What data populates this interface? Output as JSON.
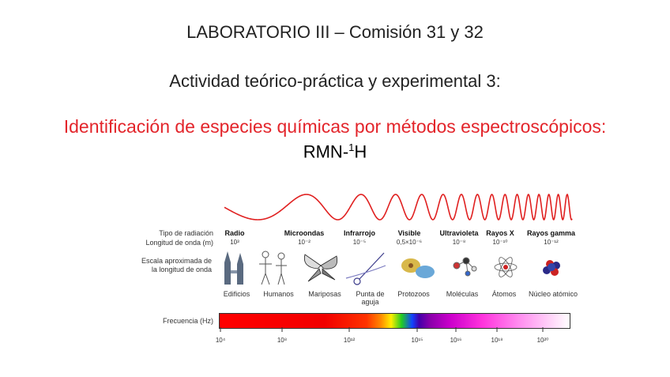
{
  "slide": {
    "title_line1": "LABORATORIO III – Comisión 31 y 32",
    "title_line2": "Actividad teórico-práctica y experimental 3:",
    "title_line3": "Identificación de especies químicas por métodos espectroscópicos:",
    "title_line4_main": "RMN-",
    "title_line4_sup": "1",
    "title_line4_end": "H"
  },
  "figure": {
    "row_labels": {
      "tipo": "Tipo de radiación",
      "longitud": "Longitud de onda (m)",
      "escala1": "Escala aproximada de",
      "escala2": "la longitud de onda",
      "frecuencia": "Frecuencia (Hz)"
    },
    "radiation_types": [
      {
        "name": "Radio",
        "wavelength": "10³"
      },
      {
        "name": "Microondas",
        "wavelength": "10⁻²"
      },
      {
        "name": "Infrarrojo",
        "wavelength": "10⁻⁵"
      },
      {
        "name": "Visible",
        "wavelength": "0,5×10⁻⁶"
      },
      {
        "name": "Ultravioleta",
        "wavelength": "10⁻⁸"
      },
      {
        "name": "Rayos X",
        "wavelength": "10⁻¹⁰"
      },
      {
        "name": "Rayos gamma",
        "wavelength": "10⁻¹²"
      }
    ],
    "scale_objects": [
      "Edificios",
      "Humanos",
      "Mariposas",
      "Punta de aguja",
      "Protozoos",
      "Moléculas",
      "Átomos",
      "Núcleo atómico"
    ],
    "frequency_ticks": [
      "10⁴",
      "10⁸",
      "10¹²",
      "10¹⁵",
      "10¹⁶",
      "10¹⁸",
      "10²⁰"
    ],
    "colors": {
      "wave": "#e02020",
      "title_red": "#e3252b"
    }
  }
}
